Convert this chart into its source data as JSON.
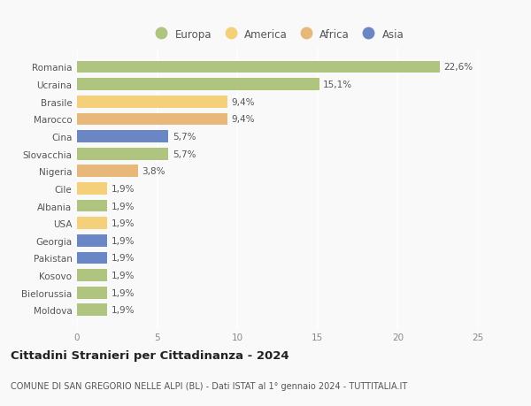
{
  "countries": [
    "Romania",
    "Ucraina",
    "Brasile",
    "Marocco",
    "Cina",
    "Slovacchia",
    "Nigeria",
    "Cile",
    "Albania",
    "USA",
    "Georgia",
    "Pakistan",
    "Kosovo",
    "Bielorussia",
    "Moldova"
  ],
  "values": [
    22.6,
    15.1,
    9.4,
    9.4,
    5.7,
    5.7,
    3.8,
    1.9,
    1.9,
    1.9,
    1.9,
    1.9,
    1.9,
    1.9,
    1.9
  ],
  "labels": [
    "22,6%",
    "15,1%",
    "9,4%",
    "9,4%",
    "5,7%",
    "5,7%",
    "3,8%",
    "1,9%",
    "1,9%",
    "1,9%",
    "1,9%",
    "1,9%",
    "1,9%",
    "1,9%",
    "1,9%"
  ],
  "colors": [
    "#aec47f",
    "#aec47f",
    "#f5d07a",
    "#e8b87a",
    "#6b86c4",
    "#aec47f",
    "#e8b87a",
    "#f5d07a",
    "#aec47f",
    "#f5d07a",
    "#6b86c4",
    "#6b86c4",
    "#aec47f",
    "#aec47f",
    "#aec47f"
  ],
  "legend_labels": [
    "Europa",
    "America",
    "Africa",
    "Asia"
  ],
  "legend_colors": [
    "#aec47f",
    "#f5d07a",
    "#e8b87a",
    "#6b86c4"
  ],
  "xlim": [
    0,
    25
  ],
  "xticks": [
    0,
    5,
    10,
    15,
    20,
    25
  ],
  "title": "Cittadini Stranieri per Cittadinanza - 2024",
  "subtitle": "COMUNE DI SAN GREGORIO NELLE ALPI (BL) - Dati ISTAT al 1° gennaio 2024 - TUTTITALIA.IT",
  "background_color": "#f9f9f9",
  "bar_height": 0.7,
  "label_fontsize": 7.5,
  "tick_fontsize": 7.5,
  "title_fontsize": 9.5,
  "subtitle_fontsize": 7.0,
  "legend_fontsize": 8.5
}
